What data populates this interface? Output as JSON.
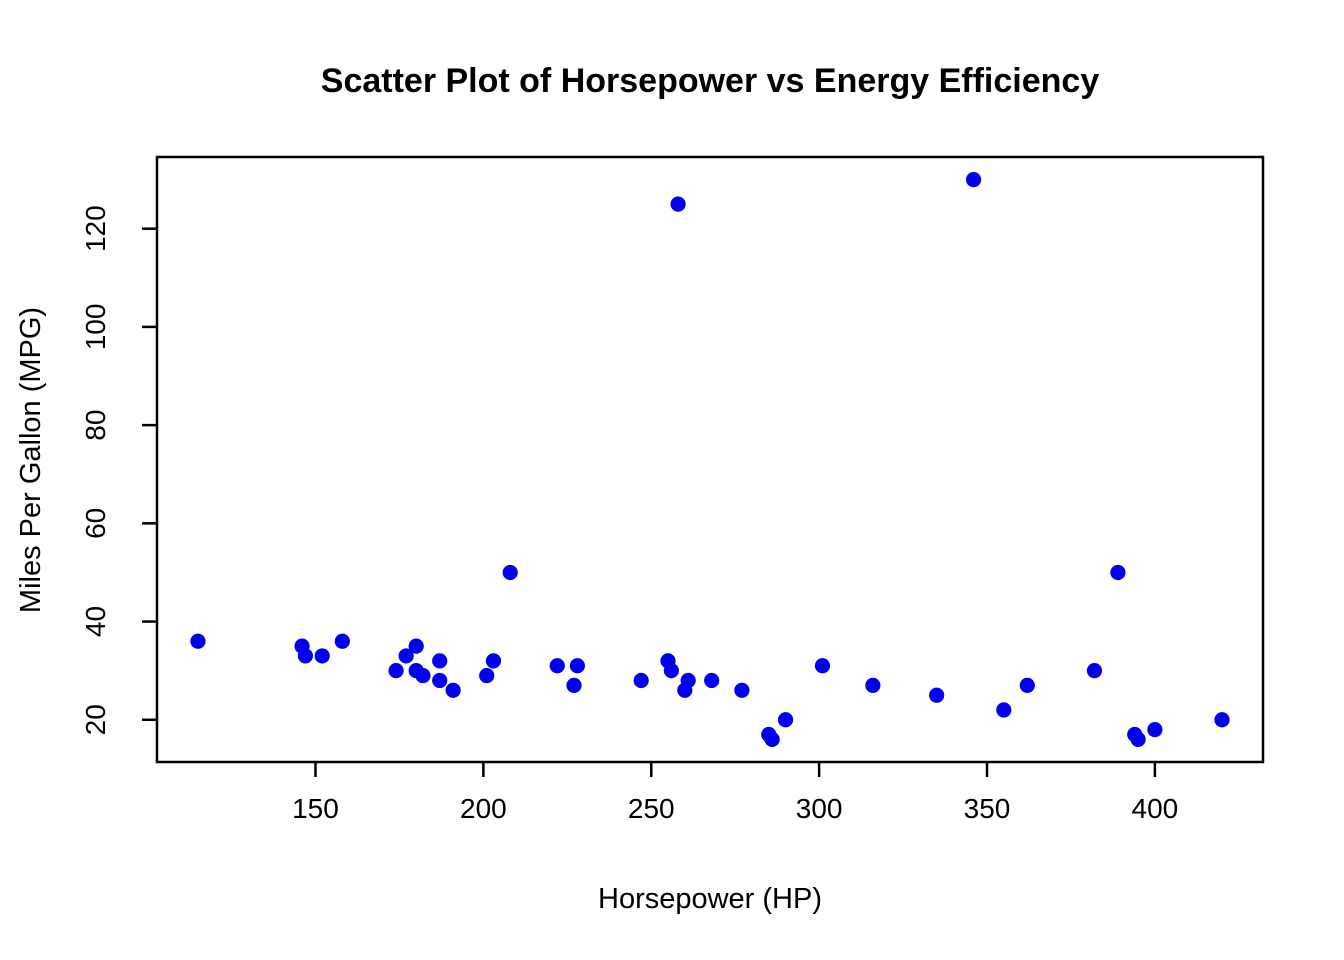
{
  "page": {
    "background_color": "#ffffff",
    "text_color": "#000000"
  },
  "chart_data": {
    "type": "scatter",
    "title": "Scatter Plot of Horsepower vs Energy Efficiency",
    "xlabel": "Horsepower (HP)",
    "ylabel": "Miles Per Gallon (MPG)",
    "x_ticks": [
      150,
      200,
      250,
      300,
      350,
      400
    ],
    "y_ticks": [
      20,
      40,
      60,
      80,
      100,
      120
    ],
    "xlim": [
      102.8,
      432.2
    ],
    "ylim": [
      11.4,
      134.6
    ],
    "grid": false,
    "legend": "none",
    "marker": "filled-circle",
    "point_color": "#0000EE",
    "axis_color": "#000000",
    "points": [
      [
        115,
        36
      ],
      [
        146,
        35
      ],
      [
        147,
        33
      ],
      [
        152,
        33
      ],
      [
        158,
        36
      ],
      [
        174,
        30
      ],
      [
        177,
        33
      ],
      [
        180,
        35
      ],
      [
        180,
        30
      ],
      [
        182,
        29
      ],
      [
        187,
        32
      ],
      [
        187,
        28
      ],
      [
        191,
        26
      ],
      [
        201,
        29
      ],
      [
        203,
        32
      ],
      [
        208,
        50
      ],
      [
        222,
        31
      ],
      [
        227,
        27
      ],
      [
        228,
        31
      ],
      [
        247,
        28
      ],
      [
        255,
        32
      ],
      [
        256,
        30
      ],
      [
        258,
        125
      ],
      [
        260,
        26
      ],
      [
        261,
        28
      ],
      [
        268,
        28
      ],
      [
        277,
        26
      ],
      [
        285,
        17
      ],
      [
        286,
        16
      ],
      [
        290,
        20
      ],
      [
        301,
        31
      ],
      [
        316,
        27
      ],
      [
        335,
        25
      ],
      [
        346,
        130
      ],
      [
        355,
        22
      ],
      [
        362,
        27
      ],
      [
        382,
        30
      ],
      [
        389,
        50
      ],
      [
        394,
        17
      ],
      [
        395,
        16
      ],
      [
        400,
        18
      ],
      [
        420,
        20
      ]
    ]
  }
}
